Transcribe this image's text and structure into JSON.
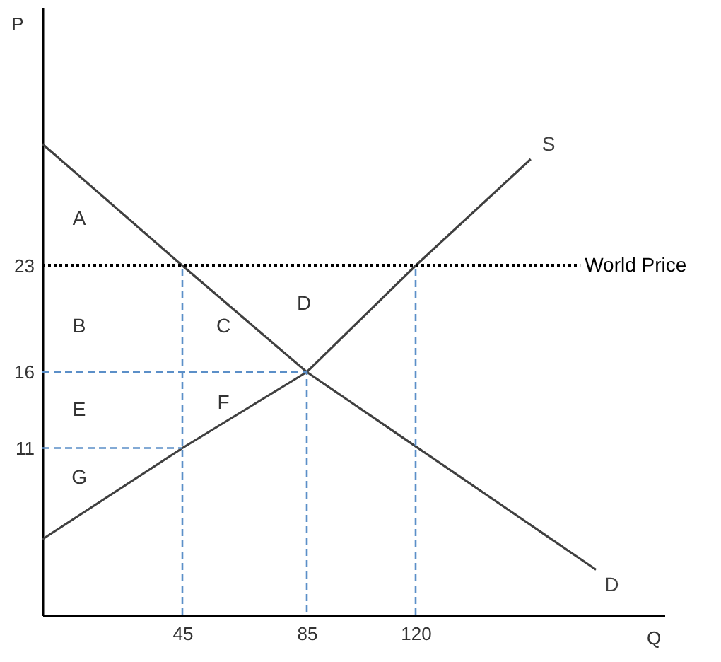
{
  "chart_data": {
    "type": "line",
    "xlabel": "Q",
    "ylabel": "P",
    "xlim": [
      0,
      200
    ],
    "ylim": [
      0,
      40
    ],
    "xticks": [
      45,
      85,
      120
    ],
    "yticks": [
      11,
      16,
      23
    ],
    "series": [
      {
        "name": "D",
        "color": "#404040",
        "x": [
          0,
          45,
          85,
          178
        ],
        "values": [
          31,
          23,
          16,
          3
        ]
      },
      {
        "name": "S",
        "color": "#404040",
        "x": [
          0,
          45,
          85,
          120,
          157
        ],
        "values": [
          5,
          11,
          16,
          23,
          30
        ]
      },
      {
        "name": "World Price",
        "color": "#000000",
        "line_style": "dotted",
        "x": [
          0,
          173
        ],
        "values": [
          23,
          23
        ]
      },
      {
        "color": "#5b8fc8",
        "line_style": "dashed",
        "x": [
          0,
          45
        ],
        "values": [
          11,
          11
        ]
      },
      {
        "color": "#5b8fc8",
        "line_style": "dashed",
        "x": [
          45,
          45
        ],
        "values": [
          0,
          23
        ]
      },
      {
        "color": "#5b8fc8",
        "line_style": "dashed",
        "x": [
          0,
          85,
          85
        ],
        "values": [
          16,
          16,
          0
        ]
      },
      {
        "color": "#5b8fc8",
        "line_style": "dashed",
        "x": [
          120,
          120
        ],
        "values": [
          0,
          23
        ]
      }
    ],
    "annotations": [
      "A",
      "B",
      "C",
      "D",
      "E",
      "F",
      "G"
    ]
  }
}
